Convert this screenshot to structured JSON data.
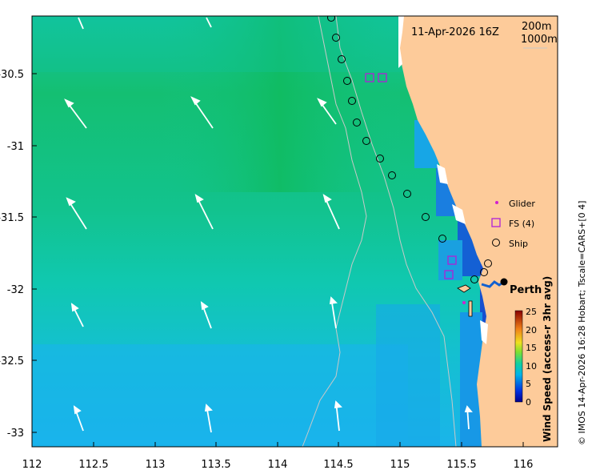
{
  "map": {
    "datetime_label": "11-Apr-2026 16Z",
    "contour_labels": [
      "200m",
      "1000m"
    ],
    "place_label": "Perth",
    "side_credit": "© IMOS 14-Apr-2026 16:28 Hobart; Tscale=CARS+[0 4]"
  },
  "axes": {
    "x_ticks": [
      "112",
      "112.5",
      "113",
      "113.5",
      "114",
      "114.5",
      "115",
      "115.5",
      "116"
    ],
    "y_ticks": [
      "-30.5",
      "-31",
      "-31.5",
      "-32",
      "-32.5",
      "-33"
    ]
  },
  "legend": {
    "glider": "Glider",
    "fs": "FS (4)",
    "ship": "Ship"
  },
  "colorbar": {
    "label": "Wind Speed (access-r 3hr avg)",
    "ticks": [
      "25",
      "20",
      "15",
      "10",
      "5",
      "0"
    ],
    "range": [
      0,
      25
    ]
  },
  "colors": {
    "land": "#fdcb9a",
    "field_north": "#15bf6a",
    "field_mid": "#10c8a0",
    "field_south": "#19b9e8",
    "coastal_strong": "#1563d8",
    "marker_fs": "#b020d8",
    "marker_glider": "#d020d0"
  }
}
